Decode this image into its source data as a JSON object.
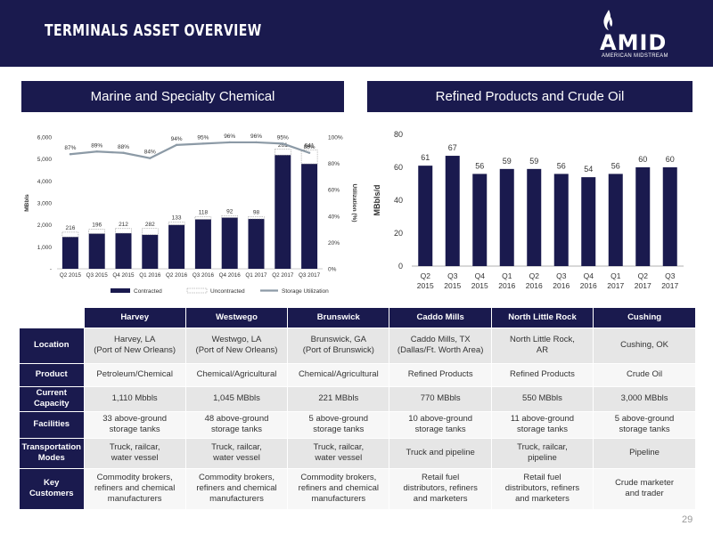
{
  "header": {
    "title": "TERMINALS ASSET OVERVIEW",
    "logo_text": "AMID",
    "logo_subtitle": "AMERICAN MIDSTREAM",
    "bg_color": "#1a1a4e"
  },
  "panels": {
    "left_title": "Marine and Specialty Chemical",
    "right_title": "Refined Products and Crude Oil"
  },
  "chart_data": [
    {
      "type": "bar",
      "stacked": true,
      "categories": [
        "Q2 2015",
        "Q3 2015",
        "Q4 2015",
        "Q1 2016",
        "Q2 2016",
        "Q3 2016",
        "Q4 2016",
        "Q1 2017",
        "Q2 2017",
        "Q3 2017"
      ],
      "series": [
        {
          "name": "Contracted",
          "type": "bar",
          "color": "#1a1a4e",
          "values": [
            1450,
            1600,
            1620,
            1550,
            2000,
            2250,
            2330,
            2270,
            5180,
            4780
          ]
        },
        {
          "name": "Uncontracted",
          "type": "bar",
          "color": "#ffffff",
          "values": [
            216,
            196,
            212,
            282,
            133,
            118,
            92,
            98,
            261,
            641
          ]
        },
        {
          "name": "Storage Utilization",
          "type": "line",
          "axis": "right",
          "color": "#8c9aa6",
          "values": [
            87,
            89,
            88,
            84,
            94,
            95,
            96,
            96,
            95,
            88
          ]
        }
      ],
      "bar_labels": [
        "216",
        "196",
        "212",
        "282",
        "133",
        "118",
        "92",
        "98",
        "261",
        "641"
      ],
      "line_labels": [
        "87%",
        "89%",
        "88%",
        "84%",
        "94%",
        "95%",
        "96%",
        "96%",
        "95%",
        "88%"
      ],
      "ylabel": "MBbls",
      "y2label": "Utilization (%)",
      "ylim": [
        0,
        6000
      ],
      "y2lim": [
        0,
        100
      ],
      "yticks": [
        "-",
        "1,000",
        "2,000",
        "3,000",
        "4,000",
        "5,000",
        "6,000"
      ],
      "y2ticks": [
        "0%",
        "20%",
        "40%",
        "60%",
        "80%",
        "100%"
      ],
      "legend_position": "bottom"
    },
    {
      "type": "bar",
      "categories": [
        [
          "Q2",
          "2015"
        ],
        [
          "Q3",
          "2015"
        ],
        [
          "Q4",
          "2015"
        ],
        [
          "Q1",
          "2016"
        ],
        [
          "Q2",
          "2016"
        ],
        [
          "Q3",
          "2016"
        ],
        [
          "Q4",
          "2016"
        ],
        [
          "Q1",
          "2017"
        ],
        [
          "Q2",
          "2017"
        ],
        [
          "Q3",
          "2017"
        ]
      ],
      "values": [
        61,
        67,
        56,
        59,
        59,
        56,
        54,
        56,
        60,
        60
      ],
      "color": "#1a1a4e",
      "ylabel": "MBbls/d",
      "ylim": [
        0,
        80
      ],
      "yticks": [
        "0",
        "20",
        "40",
        "60",
        "80"
      ]
    }
  ],
  "table": {
    "columns": [
      "Harvey",
      "Westwego",
      "Brunswick",
      "Caddo Mills",
      "North Little Rock",
      "Cushing"
    ],
    "rows": [
      {
        "label": "Location",
        "cells": [
          [
            "Harvey, LA",
            "(Port of New Orleans)"
          ],
          [
            "Westwgo, LA",
            "(Port of New Orleans)"
          ],
          [
            "Brunswick, GA",
            "(Port of Brunswick)"
          ],
          [
            "Caddo Mills, TX",
            "(Dallas/Ft. Worth Area)"
          ],
          [
            "North Little Rock,",
            "AR"
          ],
          [
            "Cushing, OK"
          ]
        ]
      },
      {
        "label": "Product",
        "cells": [
          [
            "Petroleum/Chemical"
          ],
          [
            "Chemical/Agricultural"
          ],
          [
            "Chemical/Agricultural"
          ],
          [
            "Refined Products"
          ],
          [
            "Refined Products"
          ],
          [
            "Crude Oil"
          ]
        ]
      },
      {
        "label": "Current Capacity",
        "cells": [
          [
            "1,110 Mbbls"
          ],
          [
            "1,045 MBbls"
          ],
          [
            "221 MBbls"
          ],
          [
            "770 MBbls"
          ],
          [
            "550 MBbls"
          ],
          [
            "3,000 MBbls"
          ]
        ]
      },
      {
        "label": "Facilities",
        "cells": [
          [
            "33 above-ground",
            "storage tanks"
          ],
          [
            "48 above-ground",
            "storage tanks"
          ],
          [
            "5 above-ground",
            "storage tanks"
          ],
          [
            "10 above-ground",
            "storage tanks"
          ],
          [
            "11 above-ground",
            "storage tanks"
          ],
          [
            "5 above-ground",
            "storage tanks"
          ]
        ]
      },
      {
        "label": "Transportation Modes",
        "cells": [
          [
            "Truck, railcar,",
            "water vessel"
          ],
          [
            "Truck, railcar,",
            "water vessel"
          ],
          [
            "Truck, railcar,",
            "water vessel"
          ],
          [
            "Truck and pipeline"
          ],
          [
            "Truck, railcar,",
            "pipeline"
          ],
          [
            "Pipeline"
          ]
        ]
      },
      {
        "label": "Key Customers",
        "cells": [
          [
            "Commodity brokers,",
            "refiners and chemical",
            "manufacturers"
          ],
          [
            "Commodity brokers,",
            "refiners and chemical",
            "manufacturers"
          ],
          [
            "Commodity brokers,",
            "refiners and chemical",
            "manufacturers"
          ],
          [
            "Retail fuel",
            "distributors, refiners",
            "and marketers"
          ],
          [
            "Retail fuel",
            "distributors, refiners",
            "and marketers"
          ],
          [
            "Crude marketer",
            "and trader"
          ]
        ]
      }
    ]
  },
  "footer": {
    "page_number": "29"
  }
}
